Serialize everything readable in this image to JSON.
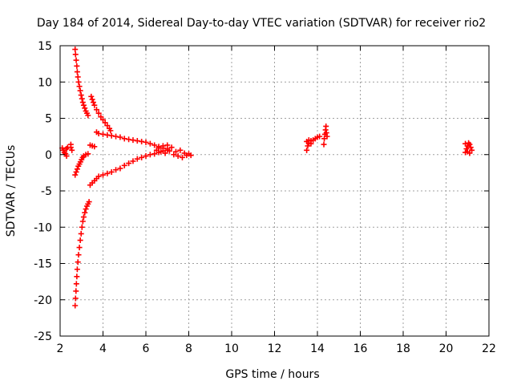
{
  "chart_data": {
    "type": "scatter",
    "title": "Day 184 of 2014, Sidereal Day-to-day VTEC variation (SDTVAR) for receiver rio2",
    "xlabel": "GPS time / hours",
    "ylabel": "SDTVAR / TECUs",
    "xlim": [
      2,
      22
    ],
    "ylim": [
      -25,
      15
    ],
    "x_ticks": [
      2,
      4,
      6,
      8,
      10,
      12,
      14,
      16,
      18,
      20,
      22
    ],
    "y_ticks": [
      -25,
      -20,
      -15,
      -10,
      -5,
      0,
      5,
      10,
      15
    ],
    "grid": true,
    "marker": "+",
    "marker_color": "#ff0000",
    "series": [
      {
        "name": "SDTVAR",
        "points": [
          [
            2.1,
            0.9
          ],
          [
            2.15,
            0.6
          ],
          [
            2.2,
            0.3
          ],
          [
            2.25,
            0.1
          ],
          [
            2.3,
            0.8
          ],
          [
            2.35,
            1.0
          ],
          [
            2.3,
            -0.2
          ],
          [
            2.5,
            1.4
          ],
          [
            2.5,
            1.0
          ],
          [
            2.55,
            0.6
          ],
          [
            2.7,
            14.5
          ],
          [
            2.72,
            13.8
          ],
          [
            2.75,
            13.0
          ],
          [
            2.78,
            12.2
          ],
          [
            2.8,
            11.4
          ],
          [
            2.83,
            10.7
          ],
          [
            2.86,
            10.0
          ],
          [
            2.9,
            9.4
          ],
          [
            2.94,
            8.8
          ],
          [
            2.98,
            8.2
          ],
          [
            3.02,
            7.7
          ],
          [
            3.06,
            7.2
          ],
          [
            3.1,
            6.8
          ],
          [
            3.15,
            6.4
          ],
          [
            3.2,
            6.0
          ],
          [
            3.25,
            5.7
          ],
          [
            3.3,
            5.4
          ],
          [
            3.45,
            8.0
          ],
          [
            3.5,
            7.6
          ],
          [
            3.55,
            7.2
          ],
          [
            3.6,
            6.8
          ],
          [
            3.7,
            6.2
          ],
          [
            3.8,
            5.7
          ],
          [
            3.9,
            5.2
          ],
          [
            4.0,
            4.8
          ],
          [
            4.1,
            4.4
          ],
          [
            4.2,
            4.0
          ],
          [
            4.3,
            3.6
          ],
          [
            4.35,
            3.3
          ],
          [
            3.4,
            1.3
          ],
          [
            3.5,
            1.2
          ],
          [
            3.6,
            1.1
          ],
          [
            3.7,
            3.1
          ],
          [
            3.8,
            2.9
          ],
          [
            4.0,
            2.8
          ],
          [
            4.2,
            2.7
          ],
          [
            4.4,
            2.6
          ],
          [
            4.6,
            2.5
          ],
          [
            4.8,
            2.4
          ],
          [
            5.0,
            2.2
          ],
          [
            5.2,
            2.1
          ],
          [
            5.4,
            2.0
          ],
          [
            5.6,
            1.9
          ],
          [
            5.8,
            1.8
          ],
          [
            6.0,
            1.7
          ],
          [
            6.2,
            1.5
          ],
          [
            6.4,
            1.3
          ],
          [
            6.6,
            1.1
          ],
          [
            6.8,
            0.9
          ],
          [
            7.0,
            0.8
          ],
          [
            2.7,
            -2.8
          ],
          [
            2.75,
            -2.4
          ],
          [
            2.8,
            -2.0
          ],
          [
            2.85,
            -1.6
          ],
          [
            2.9,
            -1.3
          ],
          [
            2.95,
            -1.0
          ],
          [
            3.0,
            -0.7
          ],
          [
            3.05,
            -0.4
          ],
          [
            3.1,
            -0.2
          ],
          [
            3.2,
            0.0
          ],
          [
            3.3,
            0.1
          ],
          [
            3.4,
            -4.2
          ],
          [
            3.5,
            -3.9
          ],
          [
            3.6,
            -3.6
          ],
          [
            3.7,
            -3.3
          ],
          [
            3.8,
            -3.0
          ],
          [
            4.0,
            -2.8
          ],
          [
            4.2,
            -2.6
          ],
          [
            4.4,
            -2.4
          ],
          [
            4.6,
            -2.1
          ],
          [
            4.8,
            -1.9
          ],
          [
            5.0,
            -1.5
          ],
          [
            5.2,
            -1.2
          ],
          [
            5.4,
            -0.9
          ],
          [
            5.6,
            -0.6
          ],
          [
            5.8,
            -0.4
          ],
          [
            6.0,
            -0.2
          ],
          [
            6.2,
            0.0
          ],
          [
            6.4,
            0.1
          ],
          [
            6.6,
            0.3
          ],
          [
            6.8,
            0.5
          ],
          [
            7.0,
            0.6
          ],
          [
            2.7,
            -20.8
          ],
          [
            2.72,
            -19.8
          ],
          [
            2.74,
            -18.8
          ],
          [
            2.76,
            -17.8
          ],
          [
            2.78,
            -16.8
          ],
          [
            2.8,
            -15.8
          ],
          [
            2.83,
            -14.8
          ],
          [
            2.86,
            -13.8
          ],
          [
            2.9,
            -12.8
          ],
          [
            2.94,
            -11.8
          ],
          [
            2.98,
            -10.9
          ],
          [
            3.02,
            -10.0
          ],
          [
            3.06,
            -9.2
          ],
          [
            3.1,
            -8.6
          ],
          [
            3.15,
            -8.0
          ],
          [
            3.2,
            -7.5
          ],
          [
            3.25,
            -7.1
          ],
          [
            3.3,
            -6.8
          ],
          [
            3.35,
            -6.5
          ],
          [
            6.5,
            0.6
          ],
          [
            6.6,
            0.9
          ],
          [
            6.7,
            0.4
          ],
          [
            6.8,
            1.2
          ],
          [
            6.9,
            0.2
          ],
          [
            7.0,
            1.3
          ],
          [
            7.1,
            0.5
          ],
          [
            7.2,
            1.0
          ],
          [
            7.3,
            0.0
          ],
          [
            7.4,
            0.4
          ],
          [
            7.5,
            -0.2
          ],
          [
            7.6,
            0.6
          ],
          [
            7.7,
            -0.4
          ],
          [
            7.8,
            0.2
          ],
          [
            7.9,
            -0.1
          ],
          [
            8.0,
            0.1
          ],
          [
            8.1,
            -0.1
          ],
          [
            13.5,
            0.6
          ],
          [
            13.55,
            1.2
          ],
          [
            13.6,
            1.6
          ],
          [
            13.7,
            1.9
          ],
          [
            13.8,
            2.0
          ],
          [
            13.9,
            2.2
          ],
          [
            14.0,
            2.4
          ],
          [
            14.1,
            2.5
          ],
          [
            13.5,
            1.8
          ],
          [
            13.6,
            2.0
          ],
          [
            13.7,
            1.5
          ],
          [
            14.3,
            1.4
          ],
          [
            14.32,
            2.2
          ],
          [
            14.35,
            2.8
          ],
          [
            14.38,
            3.4
          ],
          [
            14.4,
            3.9
          ],
          [
            14.42,
            3.0
          ],
          [
            14.45,
            2.5
          ],
          [
            20.9,
            0.3
          ],
          [
            20.95,
            0.8
          ],
          [
            21.0,
            1.2
          ],
          [
            21.05,
            1.6
          ],
          [
            21.1,
            1.4
          ],
          [
            21.15,
            1.0
          ],
          [
            21.2,
            0.6
          ],
          [
            20.9,
            1.5
          ],
          [
            21.0,
            0.4
          ],
          [
            21.1,
            0.2
          ]
        ]
      }
    ]
  }
}
